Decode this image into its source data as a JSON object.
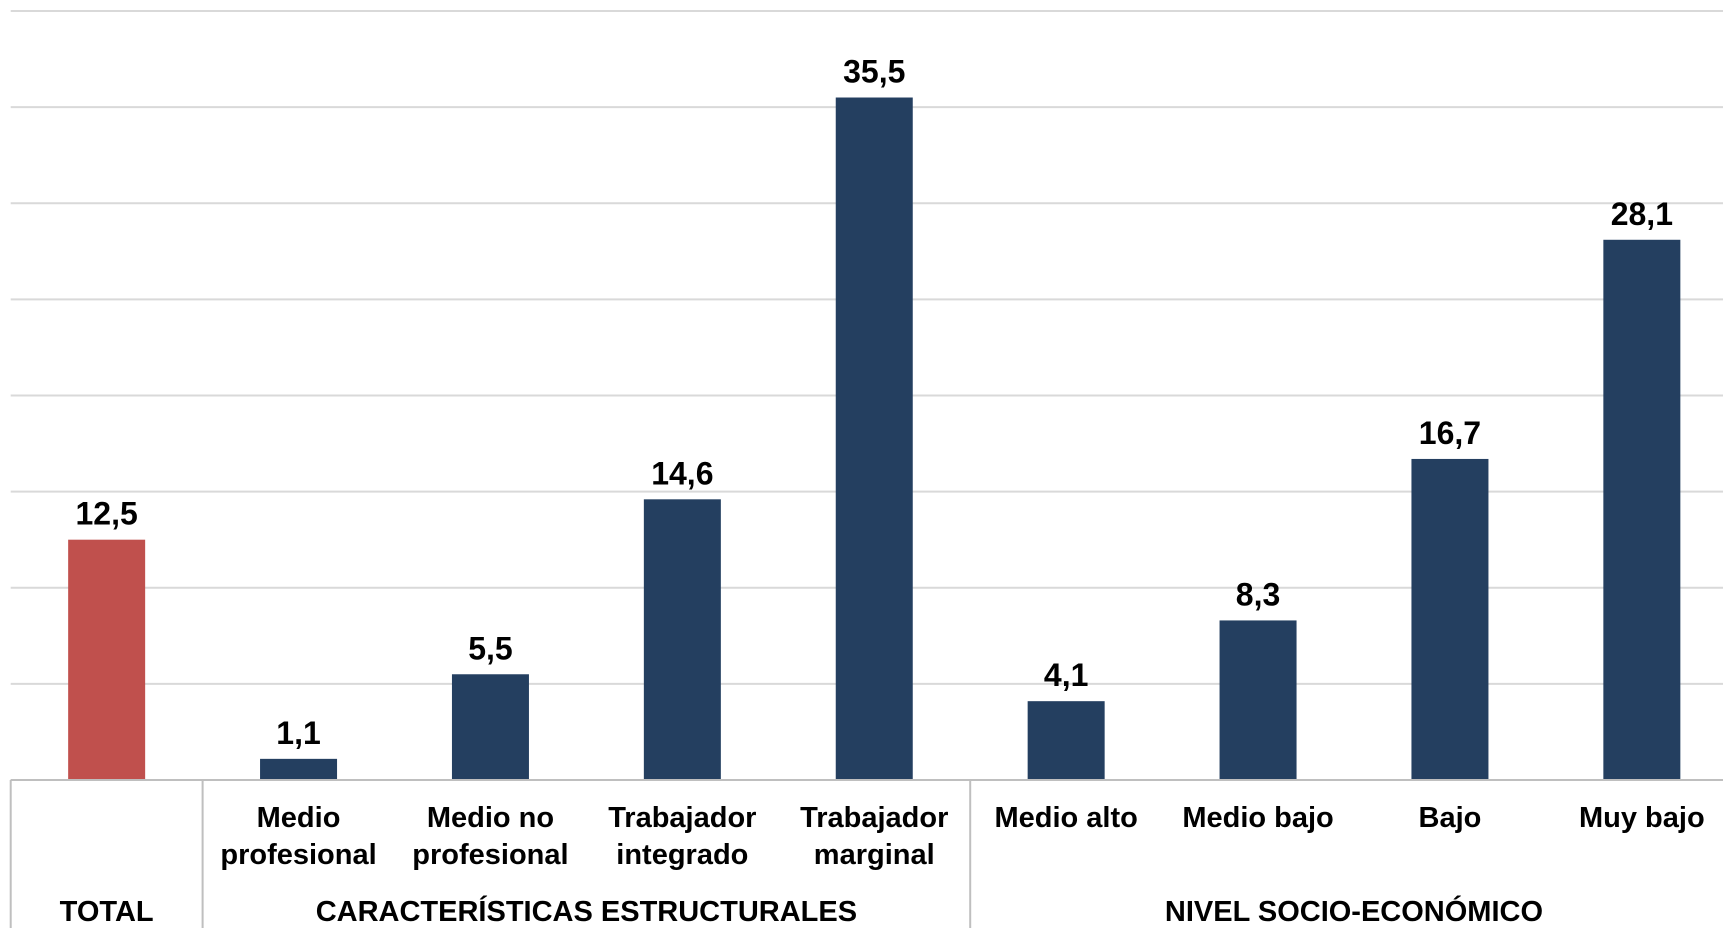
{
  "chart_data": {
    "type": "bar",
    "categories": [
      null,
      "Medio profesional",
      "Medio no profesional",
      "Trabajador integrado",
      "Trabajador marginal",
      "Medio alto",
      "Medio bajo",
      "Bajo",
      "Muy bajo"
    ],
    "values": [
      12.5,
      1.1,
      5.5,
      14.6,
      35.5,
      4.1,
      8.3,
      16.7,
      28.1
    ],
    "value_labels": [
      "12,5",
      "1,1",
      "5,5",
      "14,6",
      "35,5",
      "4,1",
      "8,3",
      "16,7",
      "28,1"
    ],
    "colors": [
      "#c0504d",
      "#243f60",
      "#243f60",
      "#243f60",
      "#243f60",
      "#243f60",
      "#243f60",
      "#243f60",
      "#243f60"
    ],
    "groups": [
      {
        "name": "TOTAL",
        "size": 1
      },
      {
        "name": "CARACTERÍSTICAS ESTRUCTURALES",
        "size": 4
      },
      {
        "name": "NIVEL SOCIO-ECONÓMICO",
        "size": 4
      }
    ],
    "ylim": [
      0,
      40
    ],
    "yticks": [
      0,
      5,
      10,
      15,
      20,
      25,
      30,
      35,
      40
    ],
    "grid": true
  }
}
